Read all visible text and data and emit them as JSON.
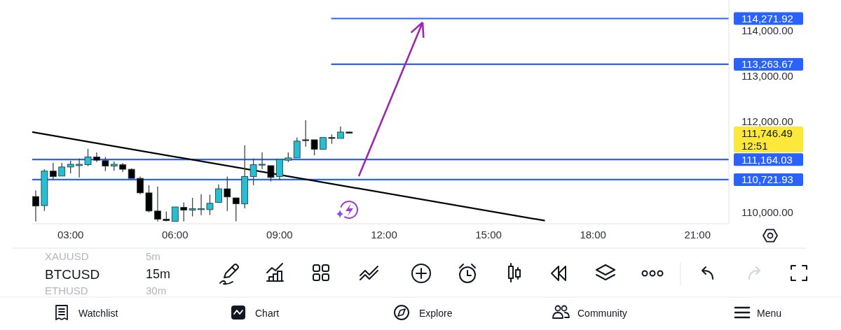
{
  "chart_data": {
    "type": "candlestick",
    "title": "BTCUSD",
    "subtitle": "15m",
    "x": [
      2,
      2.25,
      2.5,
      2.75,
      3,
      3.25,
      3.5,
      3.75,
      4,
      4.25,
      4.5,
      4.75,
      5,
      5.25,
      5.5,
      5.75,
      6,
      6.25,
      6.5,
      6.75,
      7,
      7.25,
      7.5,
      7.75,
      8,
      8.25,
      8.5,
      8.75,
      9,
      9.25,
      9.5,
      9.75,
      10,
      10.25,
      10.5,
      10.75,
      11
    ],
    "ohlc": [
      [
        110350,
        110480,
        109800,
        110140
      ],
      [
        110150,
        110950,
        110030,
        110910
      ],
      [
        110910,
        111090,
        110710,
        110790
      ],
      [
        110800,
        111090,
        110800,
        111000
      ],
      [
        111000,
        111140,
        110860,
        111060
      ],
      [
        111030,
        111190,
        110770,
        111060
      ],
      [
        111050,
        111400,
        111020,
        111220
      ],
      [
        111220,
        111320,
        111110,
        111150
      ],
      [
        111140,
        111220,
        110910,
        111020
      ],
      [
        111020,
        111120,
        110920,
        111060
      ],
      [
        111050,
        111090,
        110890,
        110950
      ],
      [
        110950,
        110970,
        110750,
        110750
      ],
      [
        110750,
        110790,
        110400,
        110430
      ],
      [
        110430,
        110600,
        110000,
        110030
      ],
      [
        110030,
        110570,
        109800,
        109850
      ],
      [
        109850,
        110020,
        109800,
        109820
      ],
      [
        109800,
        110120,
        109800,
        110120
      ],
      [
        110110,
        110220,
        109800,
        110050
      ],
      [
        110050,
        110320,
        109910,
        110080
      ],
      [
        110060,
        110400,
        109940,
        110080
      ],
      [
        110060,
        110390,
        109940,
        110200
      ],
      [
        110220,
        110620,
        110220,
        110520
      ],
      [
        110520,
        110790,
        110030,
        110340
      ],
      [
        110320,
        110320,
        109800,
        110190
      ],
      [
        110190,
        111480,
        110090,
        110790
      ],
      [
        110790,
        111190,
        110600,
        111050
      ],
      [
        111050,
        111320,
        110950,
        111060
      ],
      [
        111030,
        111030,
        110680,
        110770
      ],
      [
        110790,
        111170,
        110710,
        111170
      ],
      [
        111150,
        111320,
        111110,
        111200
      ],
      [
        111200,
        111650,
        111200,
        111570
      ],
      [
        111600,
        112030,
        111450,
        111590
      ],
      [
        111600,
        111600,
        111260,
        111390
      ],
      [
        111390,
        111650,
        111390,
        111650
      ],
      [
        111650,
        111720,
        111510,
        111630
      ],
      [
        111630,
        111890,
        111630,
        111770
      ],
      [
        111770,
        111780,
        111740,
        111746.49
      ]
    ],
    "colors": [
      "#000000",
      "#26bed2",
      "#000000",
      "#26bed2",
      "#26bed2",
      "#26bed2",
      "#26bed2",
      "#000000",
      "#000000",
      "#26bed2",
      "#000000",
      "#000000",
      "#000000",
      "#000000",
      "#000000",
      "#000000",
      "#26bed2",
      "#000000",
      "#26bed2",
      "#26bed2",
      "#26bed2",
      "#26bed2",
      "#000000",
      "#000000",
      "#26bed2",
      "#26bed2",
      "#26bed2",
      "#000000",
      "#26bed2",
      "#26bed2",
      "#26bed2",
      "#000000",
      "#000000",
      "#26bed2",
      "#000000",
      "#26bed2",
      "#000000"
    ],
    "series": [
      {
        "type": "line",
        "x": [
          1.9,
          16.6
        ],
        "values": [
          111770,
          109820
        ],
        "color": "#000000"
      },
      {
        "type": "line",
        "x": [
          10.5,
          21.9
        ],
        "values": [
          114271.92,
          114271.92
        ],
        "color": "#2962ff",
        "value_labels": [
          null,
          "114,271.92"
        ]
      },
      {
        "type": "line",
        "x": [
          10.5,
          21.9
        ],
        "values": [
          113263.67,
          113263.67
        ],
        "color": "#2962ff",
        "value_labels": [
          null,
          "113,263.67"
        ]
      }
    ],
    "ref_lines": [
      {
        "axis": "y",
        "value": 111164.03,
        "label": "111,164.03",
        "color": "#2962ff"
      },
      {
        "axis": "y",
        "value": 110721.93,
        "label": "110,721.93",
        "color": "#2962ff"
      }
    ],
    "xlim": [
      1.9,
      21.9
    ],
    "ylim": [
      109750,
      114680
    ],
    "xticks": [
      {
        "value": 3,
        "label": "03:00"
      },
      {
        "value": 6,
        "label": "06:00"
      },
      {
        "value": 9,
        "label": "09:00"
      },
      {
        "value": 12,
        "label": "12:00"
      },
      {
        "value": 15,
        "label": "15:00"
      },
      {
        "value": 18,
        "label": "18:00"
      },
      {
        "value": 21,
        "label": "21:00"
      }
    ],
    "yticks": [
      {
        "value": 110000,
        "label": "110,000.00"
      },
      {
        "value": 112000,
        "label": "112,000.00"
      },
      {
        "value": 113000,
        "label": "113,000.00"
      },
      {
        "value": 114000,
        "label": "114,000.00"
      }
    ],
    "annotations": [
      "111,746.49",
      "12:51",
      "XAUUSD",
      "5m",
      "ETHUSD",
      "30m",
      "Watchlist",
      "Chart",
      "Explore",
      "Community",
      "Menu"
    ]
  }
}
